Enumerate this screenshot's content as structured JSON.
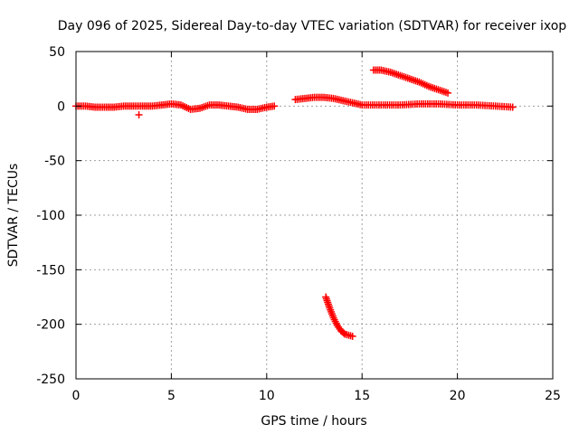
{
  "chart_data": {
    "type": "scatter",
    "title": "Day 096 of 2025, Sidereal Day-to-day VTEC variation (SDTVAR) for receiver ixop",
    "xlabel": "GPS time / hours",
    "ylabel": "SDTVAR / TECUs",
    "xlim": [
      0,
      25
    ],
    "ylim": [
      -250,
      50
    ],
    "xticks": [
      0,
      5,
      10,
      15,
      20,
      25
    ],
    "yticks": [
      -250,
      -200,
      -150,
      -100,
      -50,
      0,
      50
    ],
    "grid": true,
    "marker": "+",
    "series_color": "#ff0000",
    "segments": [
      {
        "x": [
          0.0,
          0.5,
          1.0,
          1.5,
          2.0,
          2.5,
          3.0,
          3.5,
          4.0,
          4.5,
          5.0,
          5.5,
          6.0,
          6.5,
          7.0,
          7.5,
          8.0,
          8.5,
          9.0,
          9.5,
          10.0,
          10.4
        ],
        "y": [
          0,
          0,
          -1,
          -1,
          -1,
          0,
          0,
          0,
          0,
          1,
          2,
          1,
          -3,
          -2,
          1,
          1,
          0,
          -1,
          -3,
          -3,
          -1,
          0
        ]
      },
      {
        "x": [
          3.3
        ],
        "y": [
          -8
        ]
      },
      {
        "x": [
          11.5,
          12.0,
          12.5,
          13.0,
          13.5,
          14.0,
          14.5,
          15.0,
          16.0,
          17.0,
          18.0,
          19.0,
          20.0,
          21.0,
          22.0,
          22.9
        ],
        "y": [
          6,
          7,
          8,
          8,
          7,
          5,
          3,
          1,
          1,
          1,
          2,
          2,
          1,
          1,
          0,
          -1
        ]
      },
      {
        "x": [
          15.6,
          16.0,
          16.5,
          17.0,
          17.5,
          18.0,
          18.5,
          19.0,
          19.5
        ],
        "y": [
          33,
          33,
          31,
          28,
          25,
          22,
          18,
          15,
          12
        ]
      },
      {
        "x": [
          13.1,
          13.3,
          13.5,
          13.7,
          13.9,
          14.1,
          14.3,
          14.5
        ],
        "y": [
          -175,
          -185,
          -194,
          -201,
          -206,
          -209,
          -210,
          -211
        ]
      }
    ]
  }
}
